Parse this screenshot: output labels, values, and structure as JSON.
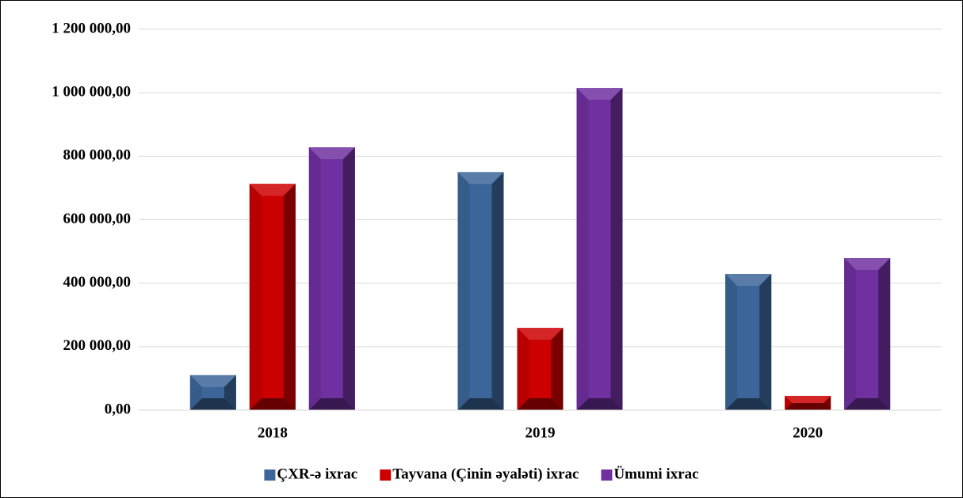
{
  "chart_data": {
    "type": "bar",
    "categories": [
      "2018",
      "2019",
      "2020"
    ],
    "series": [
      {
        "name": "ÇXR-ə ixrac",
        "color": "#3c6699",
        "values": [
          110000,
          750000,
          429000
        ]
      },
      {
        "name": "Tayvana (Çinin əyaləti) ixrac",
        "color": "#cc0000",
        "values": [
          713000,
          259000,
          45000
        ]
      },
      {
        "name": "Ümumi ixrac",
        "color": "#7030a0",
        "values": [
          828000,
          1015000,
          479000
        ]
      }
    ],
    "ylim": [
      0,
      1200000
    ],
    "yticks": [
      {
        "value": 0,
        "label": "0,00"
      },
      {
        "value": 200000,
        "label": "200 000,00"
      },
      {
        "value": 400000,
        "label": "400 000,00"
      },
      {
        "value": 600000,
        "label": "600 000,00"
      },
      {
        "value": 800000,
        "label": "800 000,00"
      },
      {
        "value": 1000000,
        "label": "1 000 000,00"
      },
      {
        "value": 1200000,
        "label": "1 200 000,00"
      }
    ],
    "grid": true,
    "legend": "bottom"
  }
}
